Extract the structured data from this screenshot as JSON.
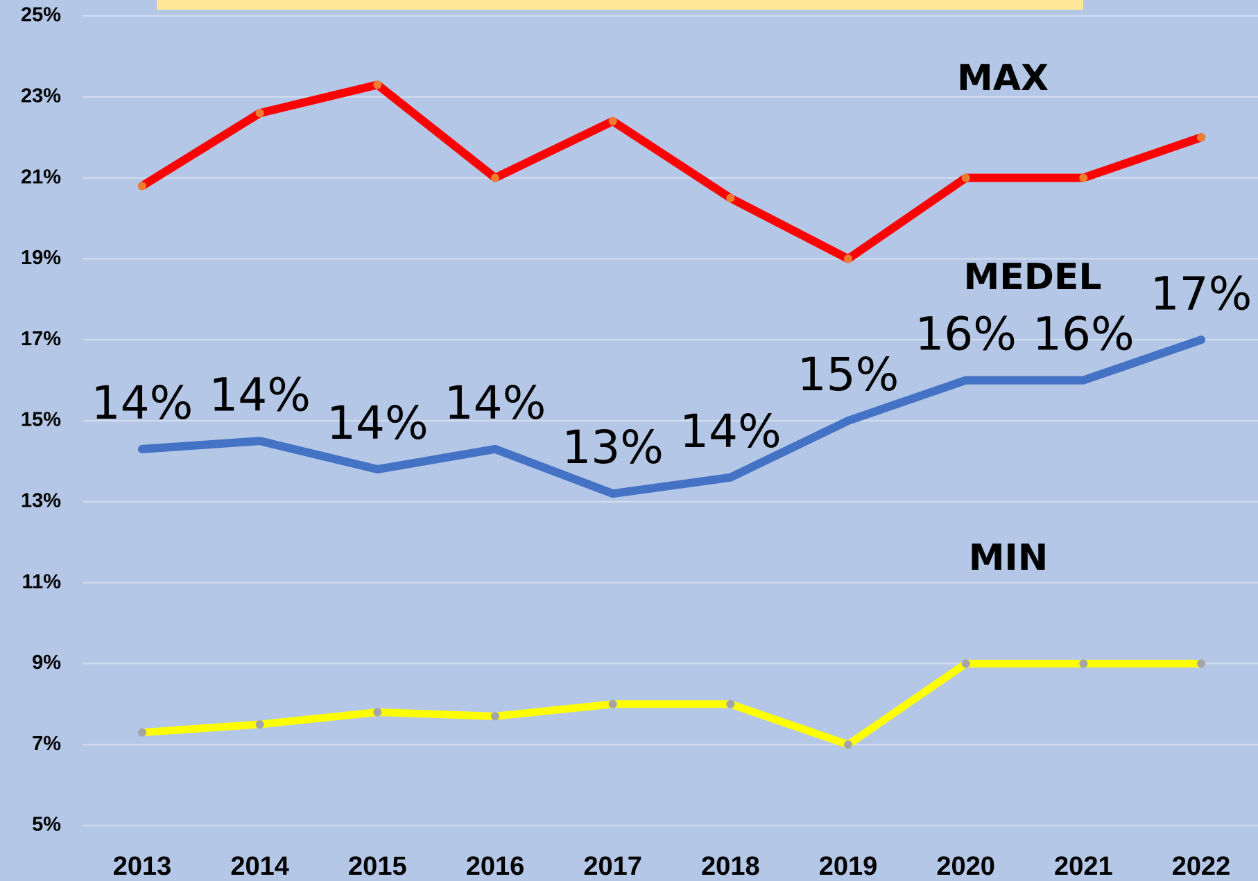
{
  "chart_data": {
    "type": "line",
    "categories": [
      "2013",
      "2014",
      "2015",
      "2016",
      "2017",
      "2018",
      "2019",
      "2020",
      "2021",
      "2022"
    ],
    "series": [
      {
        "name": "MAX",
        "color": "#ff0000",
        "marker_color": "#ed7d31",
        "values": [
          20.8,
          22.6,
          23.3,
          21.0,
          22.4,
          20.5,
          19.0,
          21.0,
          21.0,
          22.0
        ]
      },
      {
        "name": "MEDEL",
        "color": "#4472c4",
        "values": [
          14.3,
          14.5,
          13.8,
          14.3,
          13.2,
          13.6,
          15.0,
          16.0,
          16.0,
          17.0
        ],
        "value_labels": [
          "14%",
          "14%",
          "14%",
          "14%",
          "13%",
          "14%",
          "15%",
          "16%",
          "16%",
          "17%"
        ]
      },
      {
        "name": "MIN",
        "color": "#ffff00",
        "marker_color": "#a5a5a5",
        "values": [
          7.3,
          7.5,
          7.8,
          7.7,
          8.0,
          8.0,
          7.0,
          9.0,
          9.0,
          9.0
        ]
      }
    ],
    "ylim": [
      5,
      25
    ],
    "yticks": [
      {
        "value": 5,
        "label": "5%"
      },
      {
        "value": 7,
        "label": "7%"
      },
      {
        "value": 9,
        "label": "9%"
      },
      {
        "value": 11,
        "label": "11%"
      },
      {
        "value": 13,
        "label": "13%"
      },
      {
        "value": 15,
        "label": "15%"
      },
      {
        "value": 17,
        "label": "17%"
      },
      {
        "value": 19,
        "label": "19%"
      },
      {
        "value": 21,
        "label": "21%"
      },
      {
        "value": 23,
        "label": "23%"
      },
      {
        "value": 25,
        "label": "25%"
      }
    ],
    "grid": true
  }
}
